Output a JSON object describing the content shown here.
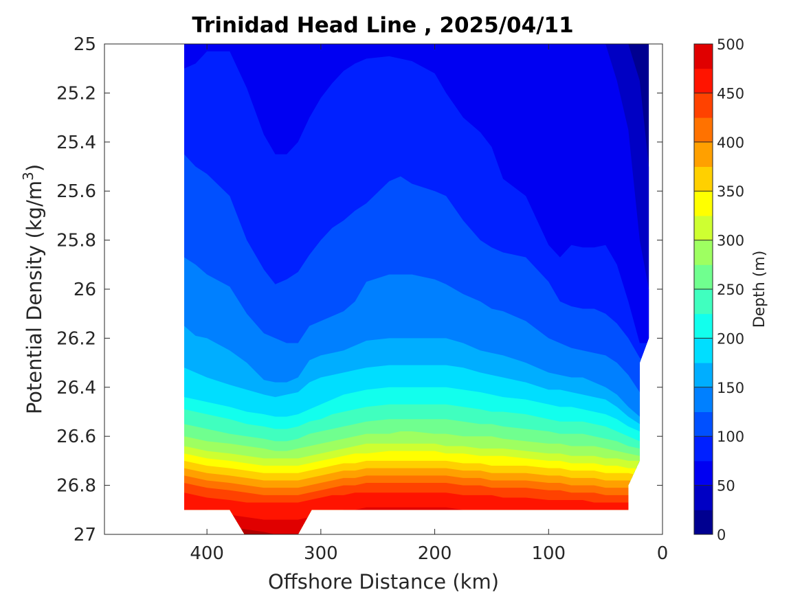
{
  "chart_data": {
    "type": "contour",
    "title": "Trinidad Head Line , 2025/04/11",
    "xlabel": "Offshore Distance (km)",
    "ylabel_main": "Potential Density (kg/m",
    "ylabel_sup": "3",
    "ylabel_close": ")",
    "xlim": [
      490,
      0
    ],
    "ylim": [
      25,
      27
    ],
    "y_reversed": true,
    "grid": false,
    "x_ticks": [
      400,
      300,
      200,
      100,
      0
    ],
    "x_tick_labels": [
      "400",
      "300",
      "200",
      "100",
      "0"
    ],
    "y_ticks": [
      25,
      25.2,
      25.4,
      25.6,
      25.8,
      26,
      26.2,
      26.4,
      26.6,
      26.8,
      27
    ],
    "y_tick_labels": [
      "25",
      "25.2",
      "25.4",
      "25.6",
      "25.8",
      "26",
      "26.2",
      "26.4",
      "26.6",
      "26.8",
      "27"
    ],
    "colorbar": {
      "label": "Depth (m)",
      "limits": [
        0,
        500
      ],
      "level_step": 25,
      "ticks": [
        0,
        50,
        100,
        150,
        200,
        250,
        300,
        350,
        400,
        450,
        500
      ],
      "tick_labels": [
        "0",
        "50",
        "100",
        "150",
        "200",
        "250",
        "300",
        "350",
        "400",
        "450",
        "500"
      ],
      "colors": [
        "#000090",
        "#0000c4",
        "#0000f2",
        "#0020ff",
        "#0050ff",
        "#0080ff",
        "#00aeff",
        "#00deff",
        "#12ffed",
        "#40ffbf",
        "#70ff8f",
        "#9eff61",
        "#ceff31",
        "#ffff00",
        "#ffd000",
        "#ffa000",
        "#ff7200",
        "#ff4200",
        "#ff1400",
        "#e00000",
        "#b00000"
      ]
    },
    "data_extent": {
      "x_min": 12,
      "x_max": 420,
      "bottom_sigma_offshore_to_nearshore": [
        {
          "x": 420,
          "sigma": 26.9
        },
        {
          "x": 380,
          "sigma": 26.9
        },
        {
          "x": 367,
          "sigma": 27.0
        },
        {
          "x": 320,
          "sigma": 27.0
        },
        {
          "x": 308,
          "sigma": 26.9
        },
        {
          "x": 30,
          "sigma": 26.9
        },
        {
          "x": 30,
          "sigma": 26.8
        },
        {
          "x": 20,
          "sigma": 26.7
        },
        {
          "x": 20,
          "sigma": 26.3
        },
        {
          "x": 12,
          "sigma": 26.2
        },
        {
          "x": 12,
          "sigma": 25.0
        }
      ]
    },
    "depth_isolines": {
      "x": [
        420,
        410,
        400,
        380,
        365,
        350,
        340,
        330,
        320,
        310,
        300,
        290,
        280,
        270,
        260,
        240,
        230,
        220,
        200,
        190,
        175,
        160,
        150,
        140,
        120,
        100,
        90,
        80,
        70,
        60,
        50,
        40,
        30,
        20,
        12
      ],
      "levels": [
        {
          "depth": 25,
          "sigma": [
            25.0,
            25.0,
            25.0,
            25.0,
            25.0,
            25.0,
            25.0,
            25.0,
            25.0,
            25.0,
            25.0,
            25.0,
            25.0,
            25.0,
            25.0,
            25.0,
            25.0,
            25.0,
            25.0,
            25.0,
            25.0,
            25.0,
            25.0,
            25.0,
            25.0,
            25.0,
            25.0,
            25.0,
            25.0,
            25.0,
            25.0,
            25.0,
            25.0,
            25.15,
            25.5
          ]
        },
        {
          "depth": 50,
          "sigma": [
            25.0,
            25.0,
            25.0,
            25.0,
            25.0,
            25.0,
            25.0,
            25.0,
            25.0,
            25.0,
            25.0,
            25.0,
            25.0,
            25.0,
            25.0,
            25.0,
            25.0,
            25.0,
            25.0,
            25.0,
            25.0,
            25.0,
            25.0,
            25.0,
            25.0,
            25.0,
            25.0,
            25.0,
            25.0,
            25.0,
            25.0,
            25.15,
            25.35,
            25.8,
            26.0
          ]
        },
        {
          "depth": 75,
          "sigma": [
            25.1,
            25.08,
            25.03,
            25.03,
            25.18,
            25.37,
            25.45,
            25.45,
            25.4,
            25.3,
            25.22,
            25.16,
            25.11,
            25.08,
            25.06,
            25.05,
            25.06,
            25.07,
            25.12,
            25.2,
            25.3,
            25.36,
            25.42,
            25.55,
            25.62,
            25.82,
            25.87,
            25.82,
            25.83,
            25.83,
            25.82,
            25.9,
            26.05,
            26.22,
            26.22
          ]
        },
        {
          "depth": 100,
          "sigma": [
            25.45,
            25.5,
            25.53,
            25.62,
            25.8,
            25.92,
            25.98,
            25.96,
            25.93,
            25.86,
            25.8,
            25.75,
            25.72,
            25.68,
            25.65,
            25.56,
            25.54,
            25.57,
            25.6,
            25.62,
            25.72,
            25.8,
            25.83,
            25.85,
            25.87,
            25.97,
            26.05,
            26.07,
            26.08,
            26.08,
            26.1,
            26.14,
            26.2,
            26.28,
            26.3
          ]
        },
        {
          "depth": 125,
          "sigma": [
            25.87,
            25.9,
            25.94,
            25.99,
            26.1,
            26.18,
            26.2,
            26.22,
            26.22,
            26.15,
            26.13,
            26.11,
            26.09,
            26.05,
            25.97,
            25.94,
            25.94,
            25.94,
            25.96,
            25.98,
            26.02,
            26.05,
            26.08,
            26.09,
            26.13,
            26.2,
            26.22,
            26.24,
            26.25,
            26.26,
            26.27,
            26.3,
            26.35,
            26.42,
            26.42
          ]
        },
        {
          "depth": 150,
          "sigma": [
            26.15,
            26.19,
            26.2,
            26.25,
            26.3,
            26.37,
            26.38,
            26.38,
            26.36,
            26.29,
            26.27,
            26.26,
            26.25,
            26.23,
            26.21,
            26.2,
            26.2,
            26.2,
            26.2,
            26.2,
            26.22,
            26.25,
            26.26,
            26.27,
            26.3,
            26.34,
            26.35,
            26.36,
            26.36,
            26.38,
            26.4,
            26.43,
            26.48,
            26.52,
            26.52
          ]
        },
        {
          "depth": 175,
          "sigma": [
            26.32,
            26.34,
            26.36,
            26.39,
            26.41,
            26.43,
            26.44,
            26.43,
            26.42,
            26.38,
            26.36,
            26.35,
            26.34,
            26.33,
            26.32,
            26.31,
            26.31,
            26.31,
            26.31,
            26.31,
            26.32,
            26.34,
            26.35,
            26.36,
            26.38,
            26.41,
            26.41,
            26.42,
            26.43,
            26.44,
            26.45,
            26.48,
            26.52,
            26.55,
            26.55
          ]
        },
        {
          "depth": 200,
          "sigma": [
            26.44,
            26.45,
            26.46,
            26.48,
            26.5,
            26.51,
            26.52,
            26.52,
            26.51,
            26.49,
            26.47,
            26.45,
            26.43,
            26.42,
            26.41,
            26.4,
            26.4,
            26.4,
            26.4,
            26.4,
            26.41,
            26.42,
            26.43,
            26.44,
            26.45,
            26.47,
            26.48,
            26.48,
            26.49,
            26.5,
            26.51,
            26.53,
            26.56,
            26.58,
            26.58
          ]
        },
        {
          "depth": 225,
          "sigma": [
            26.49,
            26.5,
            26.51,
            26.53,
            26.55,
            26.56,
            26.57,
            26.57,
            26.56,
            26.54,
            26.53,
            26.51,
            26.5,
            26.49,
            26.48,
            26.47,
            26.47,
            26.47,
            26.47,
            26.47,
            26.48,
            26.49,
            26.5,
            26.5,
            26.51,
            26.53,
            26.54,
            26.54,
            26.54,
            26.55,
            26.56,
            26.58,
            26.6,
            26.62,
            26.62
          ]
        },
        {
          "depth": 250,
          "sigma": [
            26.55,
            26.56,
            26.57,
            26.59,
            26.6,
            26.61,
            26.62,
            26.62,
            26.61,
            26.59,
            26.58,
            26.57,
            26.56,
            26.55,
            26.54,
            26.53,
            26.53,
            26.53,
            26.53,
            26.53,
            26.54,
            26.55,
            26.55,
            26.56,
            26.57,
            26.58,
            26.59,
            26.59,
            26.59,
            26.6,
            26.61,
            26.62,
            26.64,
            26.65,
            26.65
          ]
        },
        {
          "depth": 275,
          "sigma": [
            26.6,
            26.61,
            26.62,
            26.63,
            26.64,
            26.65,
            26.66,
            26.66,
            26.65,
            26.64,
            26.63,
            26.62,
            26.61,
            26.6,
            26.59,
            26.59,
            26.58,
            26.58,
            26.59,
            26.59,
            26.6,
            26.6,
            26.6,
            26.61,
            26.62,
            26.63,
            26.63,
            26.64,
            26.64,
            26.64,
            26.65,
            26.66,
            26.67,
            26.68,
            26.68
          ]
        },
        {
          "depth": 300,
          "sigma": [
            26.64,
            26.65,
            26.66,
            26.67,
            26.68,
            26.69,
            26.69,
            26.69,
            26.69,
            26.68,
            26.67,
            26.66,
            26.65,
            26.64,
            26.63,
            26.63,
            26.63,
            26.63,
            26.63,
            26.64,
            26.64,
            26.65,
            26.65,
            26.65,
            26.66,
            26.67,
            26.67,
            26.68,
            26.68,
            26.68,
            26.69,
            26.69,
            26.7,
            26.7,
            26.7
          ]
        },
        {
          "depth": 325,
          "sigma": [
            26.67,
            26.68,
            26.69,
            26.7,
            26.71,
            26.72,
            26.72,
            26.72,
            26.72,
            26.71,
            26.7,
            26.69,
            26.68,
            26.67,
            26.67,
            26.66,
            26.66,
            26.66,
            26.66,
            26.67,
            26.67,
            26.68,
            26.68,
            26.68,
            26.69,
            26.7,
            26.7,
            26.71,
            26.71,
            26.71,
            26.72,
            26.72,
            26.73,
            26.73,
            26.73
          ]
        },
        {
          "depth": 350,
          "sigma": [
            26.7,
            26.71,
            26.72,
            26.73,
            26.74,
            26.75,
            26.75,
            26.75,
            26.75,
            26.74,
            26.73,
            26.72,
            26.71,
            26.71,
            26.7,
            26.7,
            26.7,
            26.7,
            26.7,
            26.7,
            26.71,
            26.71,
            26.72,
            26.72,
            26.72,
            26.73,
            26.73,
            26.74,
            26.74,
            26.74,
            26.75,
            26.75,
            26.75,
            26.76,
            26.76
          ]
        },
        {
          "depth": 375,
          "sigma": [
            26.73,
            26.74,
            26.75,
            26.76,
            26.77,
            26.78,
            26.78,
            26.78,
            26.78,
            26.77,
            26.76,
            26.75,
            26.74,
            26.74,
            26.73,
            26.73,
            26.73,
            26.73,
            26.73,
            26.73,
            26.74,
            26.74,
            26.75,
            26.75,
            26.75,
            26.76,
            26.76,
            26.77,
            26.77,
            26.77,
            26.78,
            26.78,
            26.78,
            26.78,
            26.78
          ]
        },
        {
          "depth": 400,
          "sigma": [
            26.76,
            26.77,
            26.78,
            26.79,
            26.8,
            26.81,
            26.81,
            26.81,
            26.81,
            26.8,
            26.79,
            26.78,
            26.77,
            26.77,
            26.76,
            26.76,
            26.76,
            26.76,
            26.76,
            26.76,
            26.77,
            26.77,
            26.78,
            26.78,
            26.78,
            26.79,
            26.79,
            26.8,
            26.8,
            26.8,
            26.81,
            26.81,
            26.81,
            26.81,
            26.81
          ]
        },
        {
          "depth": 425,
          "sigma": [
            26.79,
            26.8,
            26.81,
            26.82,
            26.83,
            26.84,
            26.84,
            26.84,
            26.84,
            26.83,
            26.82,
            26.81,
            26.8,
            26.8,
            26.79,
            26.79,
            26.79,
            26.79,
            26.79,
            26.79,
            26.8,
            26.8,
            26.81,
            26.81,
            26.81,
            26.82,
            26.82,
            26.83,
            26.83,
            26.83,
            26.84,
            26.84,
            26.84,
            26.84,
            26.84
          ]
        },
        {
          "depth": 450,
          "sigma": [
            26.83,
            26.84,
            26.85,
            26.86,
            26.87,
            26.87,
            26.87,
            26.87,
            26.87,
            26.86,
            26.85,
            26.84,
            26.84,
            26.83,
            26.83,
            26.83,
            26.83,
            26.83,
            26.83,
            26.83,
            26.84,
            26.84,
            26.84,
            26.85,
            26.85,
            26.86,
            26.86,
            26.86,
            26.86,
            26.87,
            26.87,
            26.87,
            26.87,
            26.87,
            26.87
          ]
        },
        {
          "depth": 475,
          "sigma": [
            26.9,
            26.9,
            26.9,
            26.92,
            26.93,
            26.94,
            26.94,
            26.94,
            26.94,
            26.93,
            26.92,
            26.91,
            26.9,
            26.9,
            26.89,
            26.89,
            26.89,
            26.89,
            26.89,
            26.89,
            26.9,
            26.9,
            26.9,
            26.9,
            26.9,
            26.9,
            26.9,
            26.9,
            26.9,
            26.9,
            26.9,
            26.9,
            26.9,
            26.9,
            26.9
          ]
        },
        {
          "depth": 500,
          "sigma": [
            26.95,
            26.95,
            26.96,
            26.97,
            26.98,
            26.99,
            27.0,
            27.0,
            27.0,
            26.99,
            26.98,
            26.97,
            26.96,
            26.96,
            26.96,
            26.96,
            26.96,
            26.96,
            26.96,
            26.96,
            26.96,
            26.96,
            26.96,
            26.96,
            26.96,
            26.96,
            26.96,
            26.96,
            26.96,
            26.96,
            26.96,
            26.96,
            26.96,
            26.96,
            26.96
          ]
        }
      ]
    }
  }
}
